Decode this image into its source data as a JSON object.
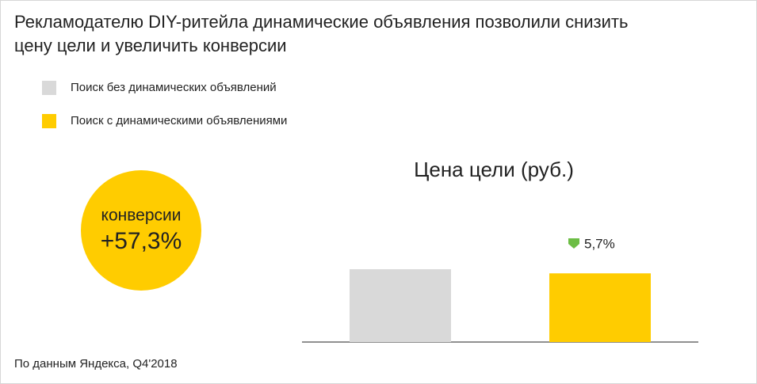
{
  "title": "Рекламодателю DIY-ритейла динамические объявления позволили снизить цену цели и увеличить конверсии",
  "highlight": {
    "label": "конверсии",
    "value": "+57,3%"
  },
  "chart_data": {
    "type": "bar",
    "title": "Цена цели (руб.)",
    "categories": [
      null
    ],
    "series": [
      {
        "name": "Поиск без динамических объявлений",
        "color": "#d9d9d9",
        "values": [
          100
        ]
      },
      {
        "name": "Поиск с динамическими объявлениями",
        "color": "#ffcc00",
        "values": [
          94.3
        ]
      }
    ],
    "annotation": "5,7%"
  },
  "source": "По данным Яндекса, Q4'2018"
}
